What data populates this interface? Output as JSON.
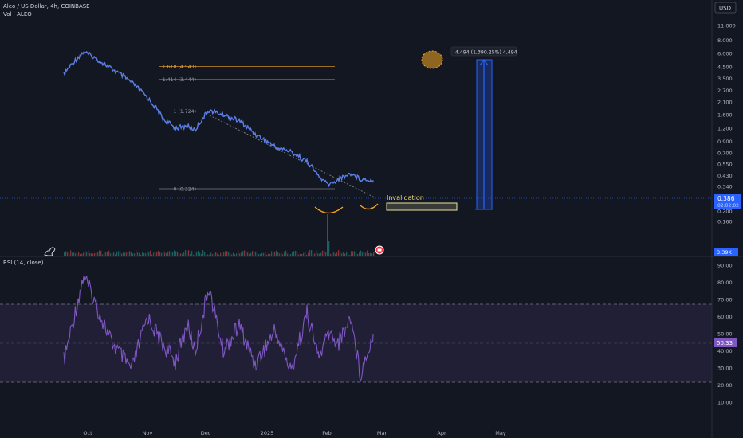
{
  "header": {
    "symbol_title": "Aleo / US Dollar, 4h, COINBASE",
    "volume_label": "Vol · ALEO",
    "currency": "USD"
  },
  "price_axis": {
    "ticks": [
      "11.000",
      "8.000",
      "6.000",
      "4.500",
      "3.500",
      "2.700",
      "2.100",
      "1.600",
      "1.200",
      "0.900",
      "0.700",
      "0.550",
      "0.430",
      "0.340",
      "0.260",
      "0.200",
      "0.160"
    ],
    "current_price": "0.386",
    "current_price_sub": "02:02:02",
    "volume_badge": "3.39K"
  },
  "rsi": {
    "label": "RSI (14, close)",
    "ticks": [
      "90.00",
      "80.00",
      "70.00",
      "60.00",
      "50.00",
      "40.00",
      "30.00",
      "20.00",
      "10.00"
    ],
    "current": "50.33",
    "upper_band": 70,
    "lower_band": 30,
    "mid_band": 50
  },
  "time_axis": [
    "Oct",
    "Nov",
    "Dec",
    "2025",
    "Feb",
    "Mar",
    "Apr",
    "May"
  ],
  "drawings": {
    "fib_levels": [
      {
        "label": "1.618 (4.543)",
        "level": 1.618,
        "price": 4.543
      },
      {
        "label": "1.414 (3.444)",
        "level": 1.414,
        "price": 3.444
      },
      {
        "label": "1 (1.724)",
        "level": 1,
        "price": 1.724
      },
      {
        "label": "0 (0.324)",
        "level": 0,
        "price": 0.324
      }
    ],
    "invalidation_label": "Invalidation",
    "measure_label": "4.494 (1,390.25%) 4,494"
  },
  "chart_data": {
    "type": "line",
    "x": [
      "Sep 27",
      "Oct 01",
      "Oct 08",
      "Oct 15",
      "Oct 22",
      "Nov 01",
      "Nov 08",
      "Nov 15",
      "Nov 22",
      "Dec 01",
      "Dec 08",
      "Dec 15",
      "Dec 22",
      "Jan 01",
      "Jan 08",
      "Jan 15",
      "Jan 22",
      "Feb 01",
      "Feb 05",
      "Feb 10",
      "Feb 15",
      "Feb 20"
    ],
    "series": [
      {
        "values": [
          3.8,
          6.2,
          4.3,
          3.2,
          2.3,
          1.45,
          1.2,
          1.25,
          1.15,
          1.75,
          1.6,
          1.4,
          1.05,
          0.8,
          0.72,
          0.58,
          0.42,
          0.35,
          0.4,
          0.45,
          0.4,
          0.39
        ]
      }
    ],
    "rsi_values": [
      34,
      84,
      45,
      29,
      60,
      43,
      34,
      55,
      40,
      77,
      40,
      55,
      32,
      52,
      28,
      62,
      36,
      50,
      45,
      60,
      26,
      50
    ],
    "yscale": "log",
    "ylim": [
      0.14,
      12
    ],
    "rsi_ylim": [
      5,
      95
    ]
  },
  "colors": {
    "background": "#131722",
    "price_line": "#5c7fe6",
    "rsi_line": "#7e57c2",
    "fib_orange": "#f5a623",
    "invalidation": "#e8e2a0",
    "current_price_badge": "#2962ff"
  }
}
